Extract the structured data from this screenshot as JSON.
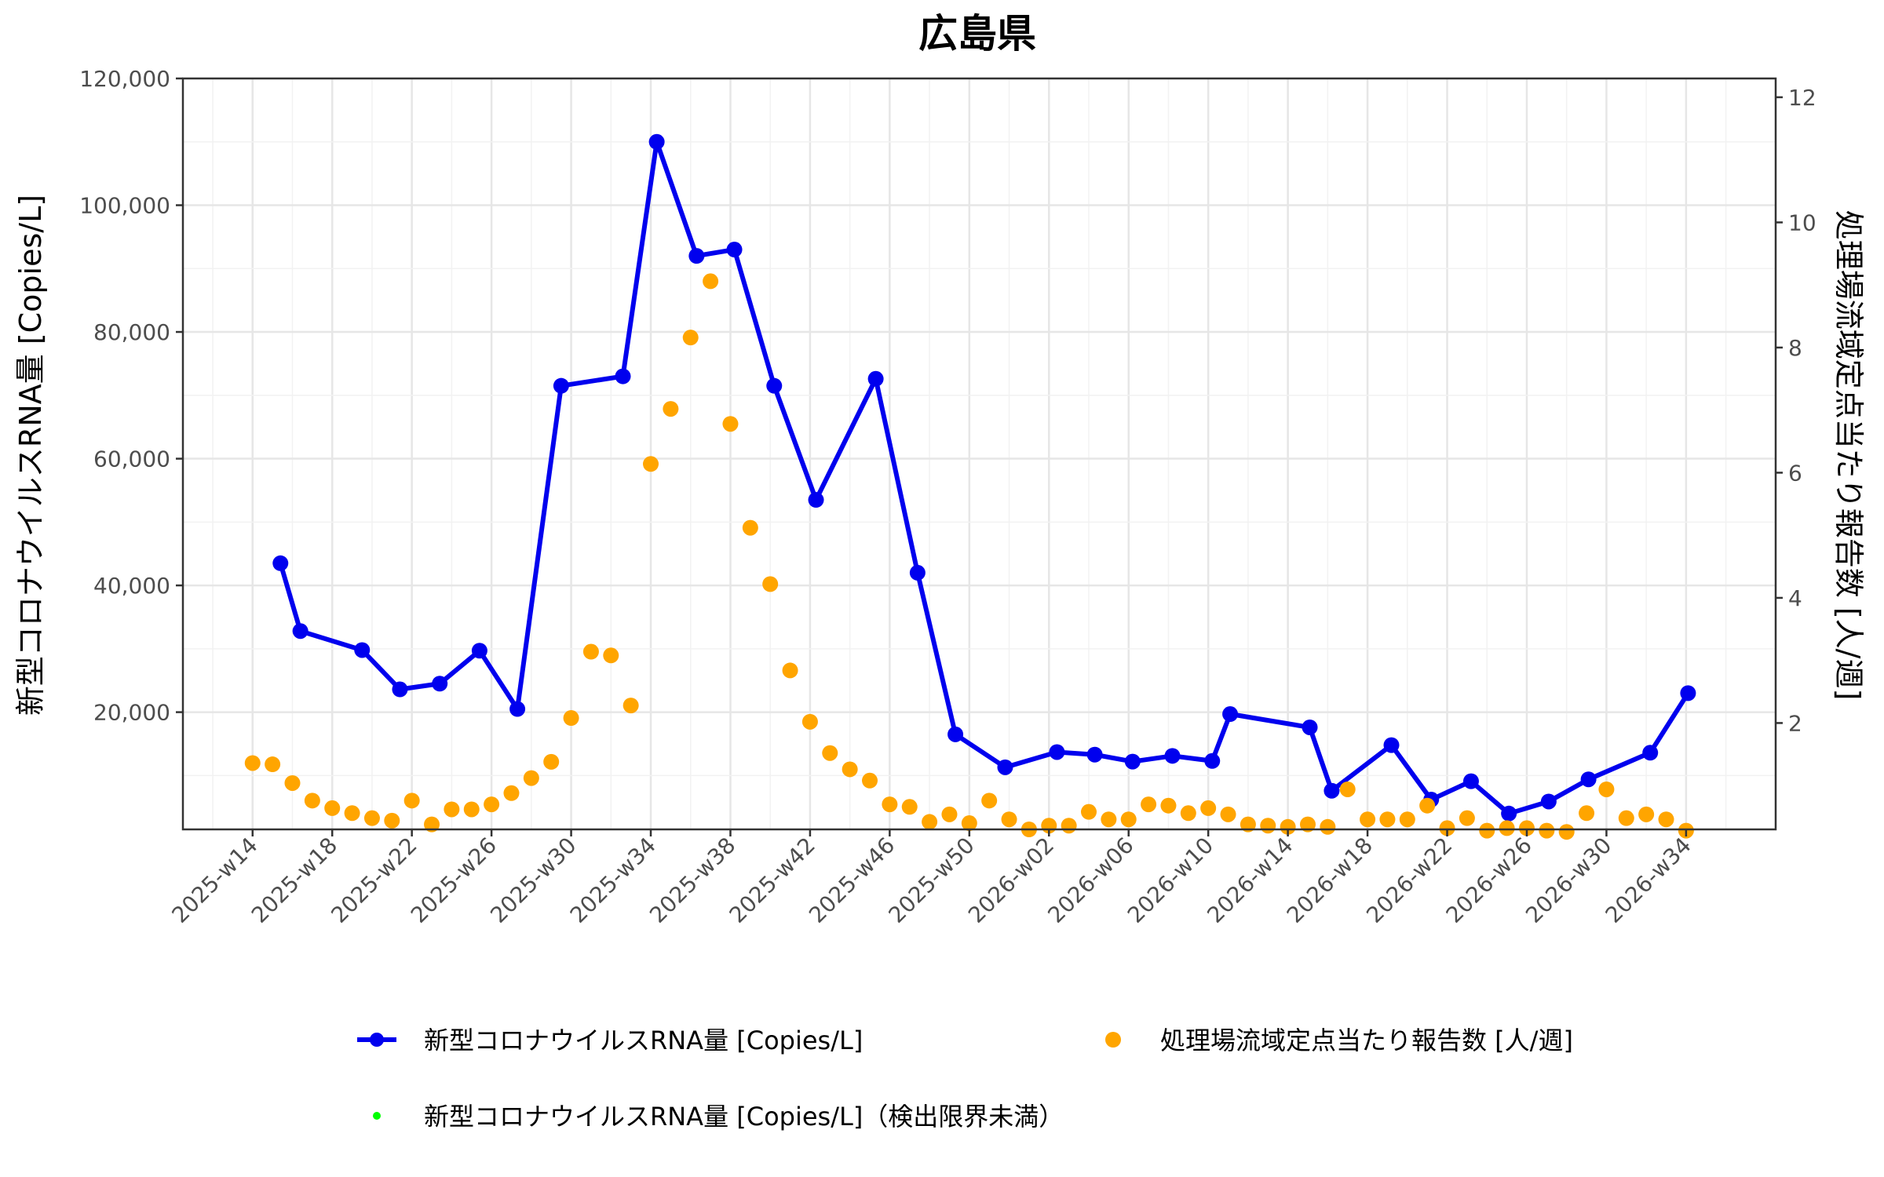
{
  "chart_data": {
    "type": "line",
    "title": "広島県",
    "ylabel": "新型コロナウイルスRNA量 [Copies/L]",
    "y2label": "処理場流域定点当たり報告数 [人/週]",
    "ylim": [
      1500,
      120000
    ],
    "y2lim": [
      0.3,
      12.3
    ],
    "yticks": [
      20000,
      40000,
      60000,
      80000,
      100000,
      120000
    ],
    "ytick_labels": [
      "20,000",
      "40,000",
      "60,000",
      "80,000",
      "100,000",
      "120,000"
    ],
    "y2ticks": [
      2,
      4,
      6,
      8,
      10,
      12
    ],
    "y2tick_labels": [
      "2",
      "4",
      "6",
      "8",
      "10",
      "12"
    ],
    "x_tick_labels": [
      "2025-w14",
      "2025-w18",
      "2025-w22",
      "2025-w26",
      "2025-w30",
      "2025-w34",
      "2025-w38",
      "2025-w42",
      "2025-w46",
      "2025-w50",
      "2026-w02",
      "2026-w06",
      "2026-w10",
      "2026-w14",
      "2026-w18",
      "2026-w22",
      "2026-w26",
      "2026-w30",
      "2026-w34"
    ],
    "x_range_weeks": [
      -3.5,
      76.5
    ],
    "grid": true,
    "legend_position": "bottom",
    "series": [
      {
        "name": "新型コロナウイルスRNA量 [Copies/L]",
        "axis": "left",
        "color": "#0000ee",
        "style": "line-with-markers",
        "points": [
          {
            "w": 1.4,
            "y": 43500
          },
          {
            "w": 2.4,
            "y": 32800
          },
          {
            "w": 5.5,
            "y": 29800
          },
          {
            "w": 7.4,
            "y": 23600
          },
          {
            "w": 9.4,
            "y": 24500
          },
          {
            "w": 11.4,
            "y": 29700
          },
          {
            "w": 13.3,
            "y": 20500
          },
          {
            "w": 15.5,
            "y": 71500
          },
          {
            "w": 18.6,
            "y": 73000
          },
          {
            "w": 20.3,
            "y": 110000
          },
          {
            "w": 22.3,
            "y": 92000
          },
          {
            "w": 24.2,
            "y": 93000
          },
          {
            "w": 26.2,
            "y": 71500
          },
          {
            "w": 28.3,
            "y": 53500
          },
          {
            "w": 31.3,
            "y": 72600
          },
          {
            "w": 33.4,
            "y": 42000
          },
          {
            "w": 35.3,
            "y": 16500
          },
          {
            "w": 37.8,
            "y": 11300
          },
          {
            "w": 40.4,
            "y": 13700
          },
          {
            "w": 42.3,
            "y": 13300
          },
          {
            "w": 44.2,
            "y": 12200
          },
          {
            "w": 46.2,
            "y": 13100
          },
          {
            "w": 48.2,
            "y": 12300
          },
          {
            "w": 49.1,
            "y": 19700
          },
          {
            "w": 53.1,
            "y": 17600
          },
          {
            "w": 54.2,
            "y": 7600
          },
          {
            "w": 57.2,
            "y": 14800
          },
          {
            "w": 59.2,
            "y": 6200
          },
          {
            "w": 61.2,
            "y": 9100
          },
          {
            "w": 63.1,
            "y": 4000
          },
          {
            "w": 65.1,
            "y": 5900
          },
          {
            "w": 67.1,
            "y": 9400
          },
          {
            "w": 70.2,
            "y": 13600
          },
          {
            "w": 72.1,
            "y": 23000
          }
        ]
      },
      {
        "name": "処理場流域定点当たり報告数 [人/週]",
        "axis": "right",
        "color": "#ffa500",
        "style": "markers",
        "points": [
          {
            "w": 0.0,
            "y": 1.36
          },
          {
            "w": 1.0,
            "y": 1.34
          },
          {
            "w": 2.0,
            "y": 1.04
          },
          {
            "w": 3.0,
            "y": 0.76
          },
          {
            "w": 4.0,
            "y": 0.64
          },
          {
            "w": 5.0,
            "y": 0.56
          },
          {
            "w": 6.0,
            "y": 0.48
          },
          {
            "w": 7.0,
            "y": 0.44
          },
          {
            "w": 8.0,
            "y": 0.76
          },
          {
            "w": 9.0,
            "y": 0.38
          },
          {
            "w": 10.0,
            "y": 0.62
          },
          {
            "w": 11.0,
            "y": 0.62
          },
          {
            "w": 12.0,
            "y": 0.7
          },
          {
            "w": 13.0,
            "y": 0.88
          },
          {
            "w": 14.0,
            "y": 1.12
          },
          {
            "w": 15.0,
            "y": 1.38
          },
          {
            "w": 16.0,
            "y": 2.08
          },
          {
            "w": 17.0,
            "y": 3.14
          },
          {
            "w": 18.0,
            "y": 3.08
          },
          {
            "w": 19.0,
            "y": 2.28
          },
          {
            "w": 20.0,
            "y": 6.14
          },
          {
            "w": 21.0,
            "y": 7.02
          },
          {
            "w": 22.0,
            "y": 8.16
          },
          {
            "w": 23.0,
            "y": 9.06
          },
          {
            "w": 24.0,
            "y": 6.78
          },
          {
            "w": 25.0,
            "y": 5.12
          },
          {
            "w": 26.0,
            "y": 4.22
          },
          {
            "w": 27.0,
            "y": 2.84
          },
          {
            "w": 28.0,
            "y": 2.02
          },
          {
            "w": 29.0,
            "y": 1.52
          },
          {
            "w": 30.0,
            "y": 1.26
          },
          {
            "w": 31.0,
            "y": 1.08
          },
          {
            "w": 32.0,
            "y": 0.7
          },
          {
            "w": 33.0,
            "y": 0.66
          },
          {
            "w": 34.0,
            "y": 0.42
          },
          {
            "w": 35.0,
            "y": 0.54
          },
          {
            "w": 36.0,
            "y": 0.4
          },
          {
            "w": 37.0,
            "y": 0.76
          },
          {
            "w": 38.0,
            "y": 0.46
          },
          {
            "w": 39.0,
            "y": 0.3
          },
          {
            "w": 40.0,
            "y": 0.36
          },
          {
            "w": 41.0,
            "y": 0.36
          },
          {
            "w": 42.0,
            "y": 0.58
          },
          {
            "w": 43.0,
            "y": 0.46
          },
          {
            "w": 44.0,
            "y": 0.46
          },
          {
            "w": 45.0,
            "y": 0.7
          },
          {
            "w": 46.0,
            "y": 0.68
          },
          {
            "w": 47.0,
            "y": 0.56
          },
          {
            "w": 48.0,
            "y": 0.64
          },
          {
            "w": 49.0,
            "y": 0.54
          },
          {
            "w": 50.0,
            "y": 0.38
          },
          {
            "w": 51.0,
            "y": 0.36
          },
          {
            "w": 52.0,
            "y": 0.34
          },
          {
            "w": 53.0,
            "y": 0.38
          },
          {
            "w": 54.0,
            "y": 0.34
          },
          {
            "w": 55.0,
            "y": 0.94
          },
          {
            "w": 56.0,
            "y": 0.46
          },
          {
            "w": 57.0,
            "y": 0.46
          },
          {
            "w": 58.0,
            "y": 0.46
          },
          {
            "w": 59.0,
            "y": 0.68
          },
          {
            "w": 60.0,
            "y": 0.32
          },
          {
            "w": 61.0,
            "y": 0.48
          },
          {
            "w": 62.0,
            "y": 0.28
          },
          {
            "w": 63.0,
            "y": 0.32
          },
          {
            "w": 64.0,
            "y": 0.32
          },
          {
            "w": 65.0,
            "y": 0.28
          },
          {
            "w": 66.0,
            "y": 0.26
          },
          {
            "w": 67.0,
            "y": 0.56
          },
          {
            "w": 68.0,
            "y": 0.94
          },
          {
            "w": 69.0,
            "y": 0.48
          },
          {
            "w": 70.0,
            "y": 0.54
          },
          {
            "w": 71.0,
            "y": 0.46
          },
          {
            "w": 72.0,
            "y": 0.28
          }
        ]
      },
      {
        "name": "新型コロナウイルスRNA量 [Copies/L]（検出限界未満）",
        "axis": "left",
        "color": "#00ff00",
        "style": "markers",
        "points": []
      }
    ]
  }
}
